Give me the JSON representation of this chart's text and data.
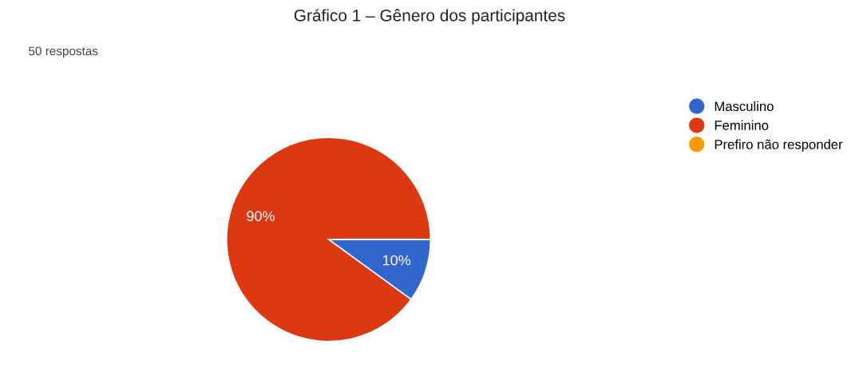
{
  "chart_data": {
    "type": "pie",
    "title": "Gráfico 1 – Gênero dos participantes",
    "subtitle": "50 respostas",
    "categories": [
      "Masculino",
      "Feminino",
      "Prefiro não responder"
    ],
    "values": [
      10,
      90,
      0
    ],
    "colors": [
      "#3366cc",
      "#dc3912",
      "#ff9900"
    ],
    "value_labels": [
      "10%",
      "90%",
      null
    ],
    "legend": "top right"
  }
}
